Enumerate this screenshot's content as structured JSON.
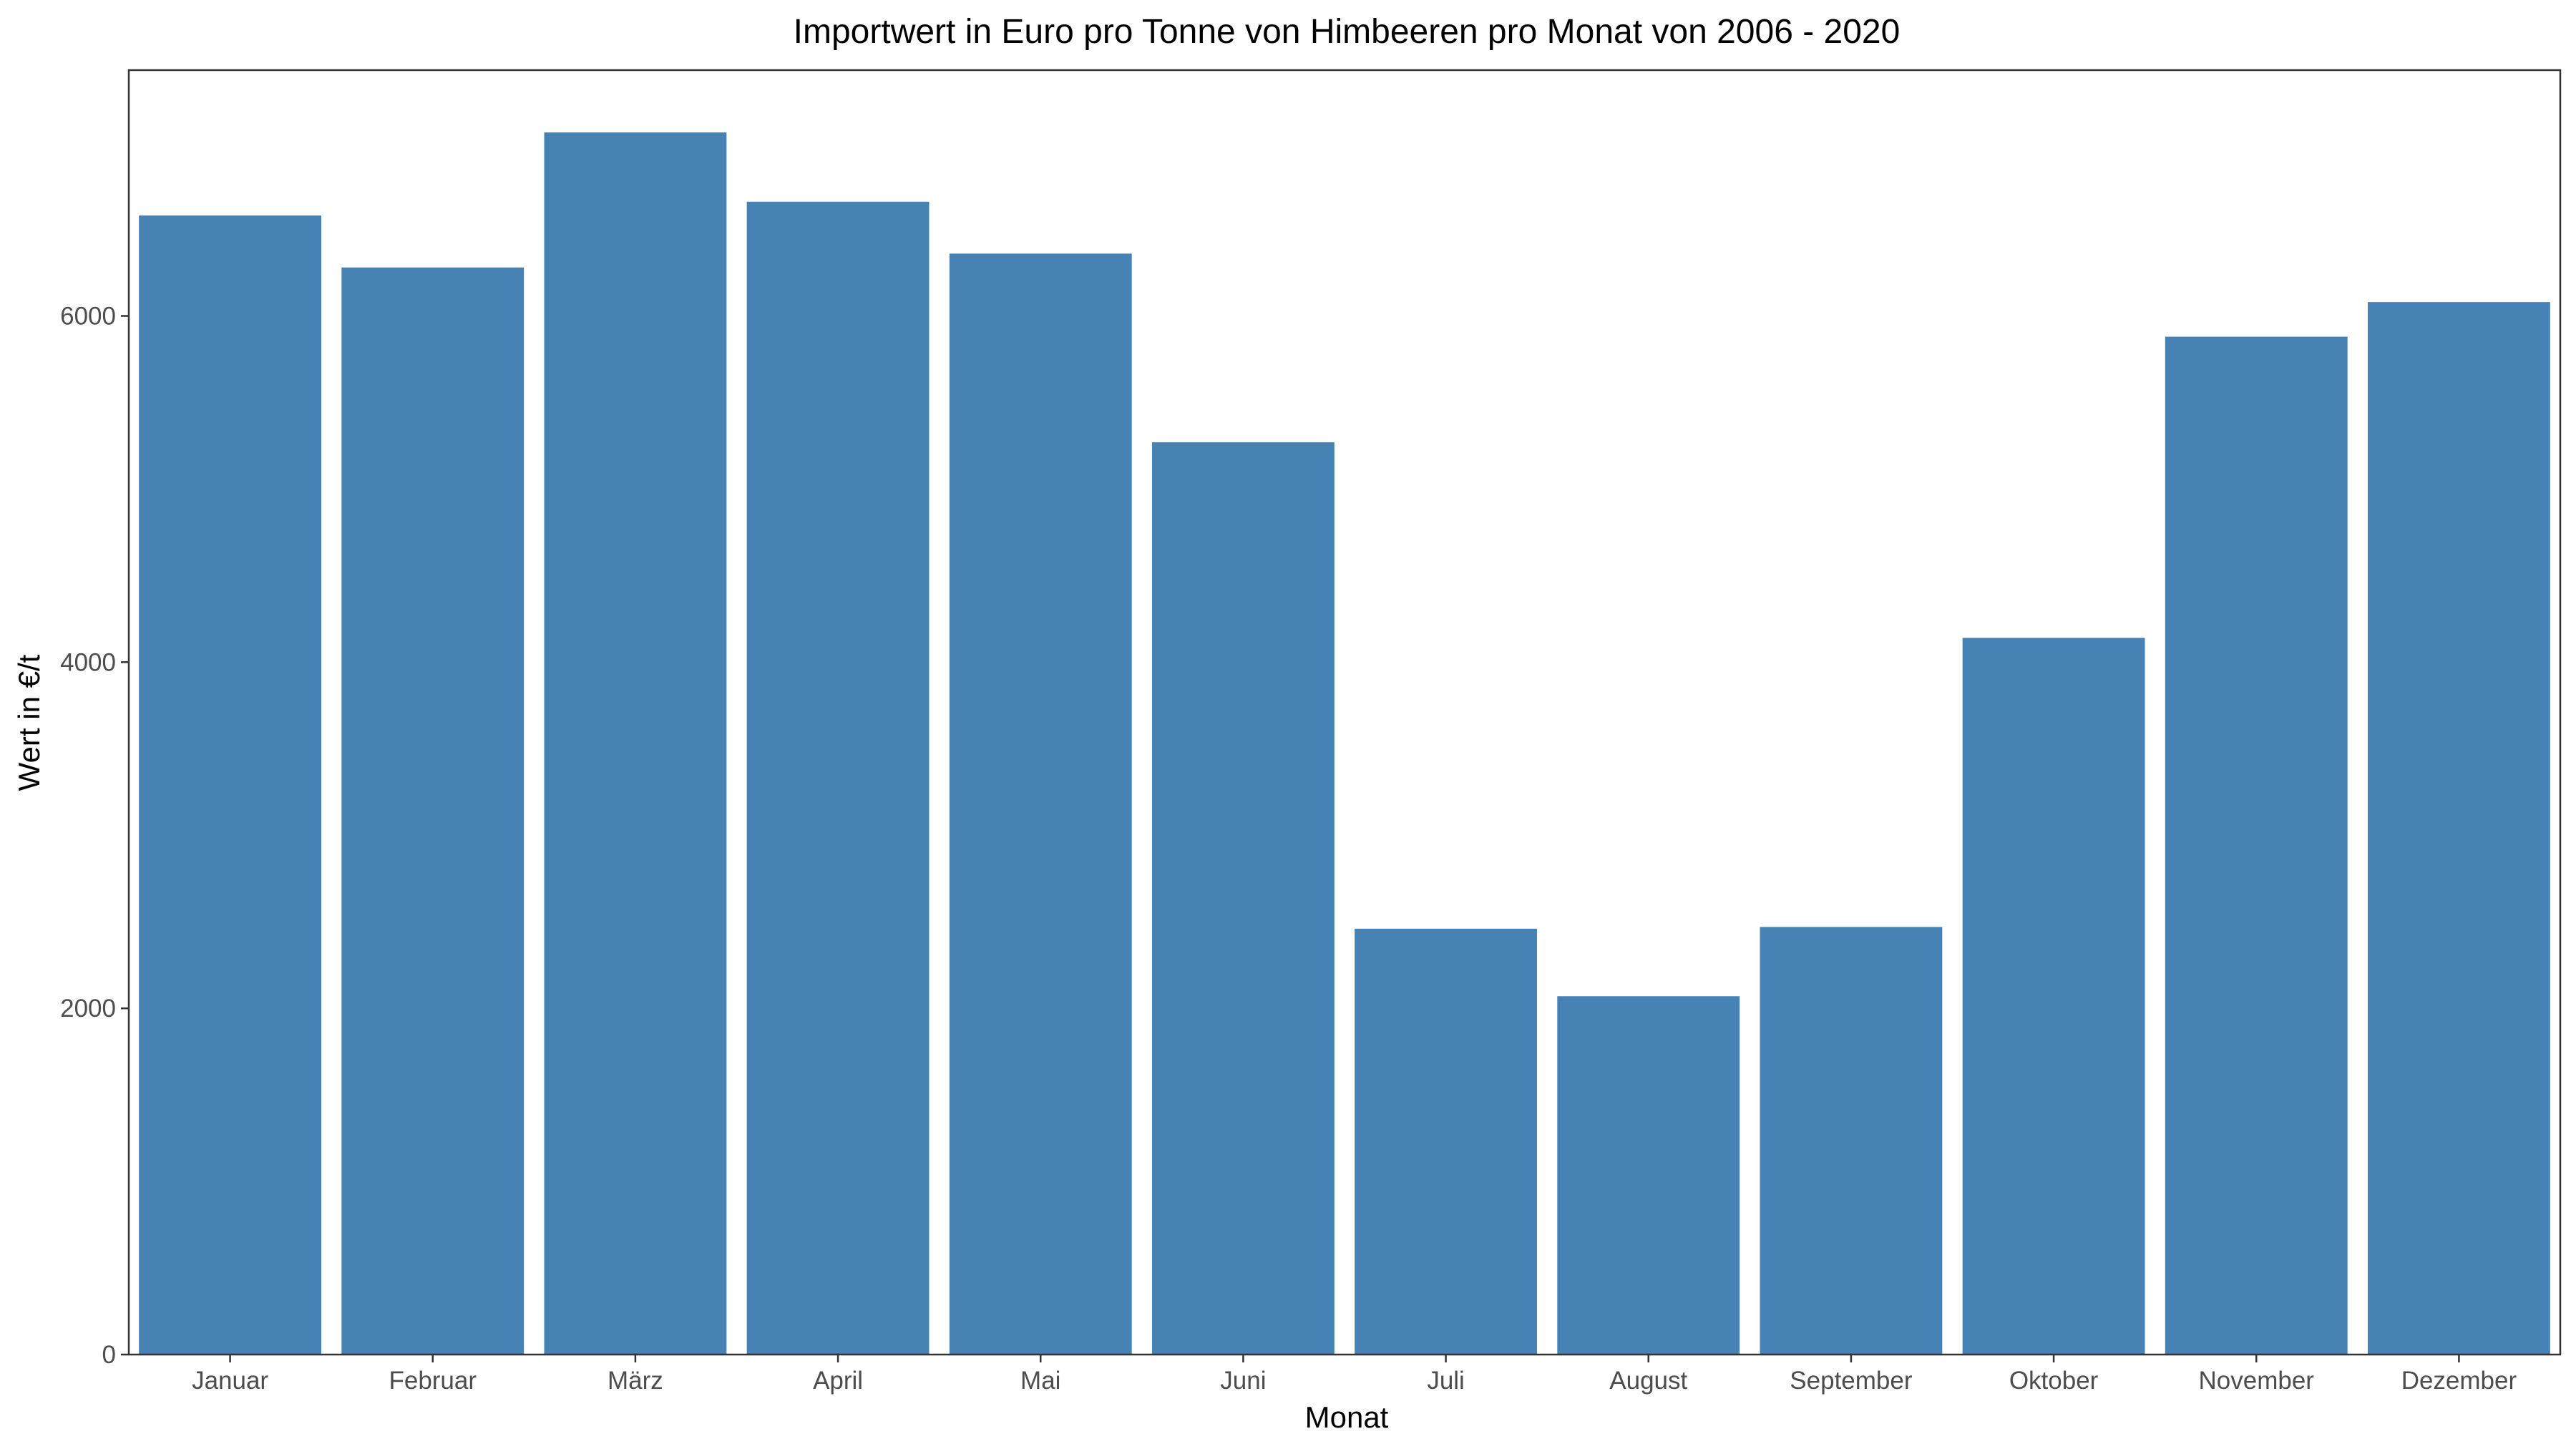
{
  "colors": {
    "bar": "#4682B4",
    "panel_border": "#333333",
    "axis_text": "#4d4d4d",
    "background": "#ffffff"
  },
  "chart_data": {
    "type": "bar",
    "title": "Importwert in Euro pro Tonne von Himbeeren pro Monat von 2006 - 2020",
    "xlabel": "Monat",
    "ylabel": "Wert in €/t",
    "categories": [
      "Januar",
      "Februar",
      "März",
      "April",
      "Mai",
      "Juni",
      "Juli",
      "August",
      "September",
      "Oktober",
      "November",
      "Dezember"
    ],
    "values": [
      6580,
      6280,
      7060,
      6660,
      6360,
      5270,
      2460,
      2070,
      2470,
      4140,
      5880,
      6080
    ],
    "ylim": [
      0,
      7420
    ],
    "yticks": [
      0,
      2000,
      4000,
      6000
    ],
    "ytick_labels": [
      "0",
      "2000",
      "4000",
      "6000"
    ],
    "grid": false,
    "legend": "none"
  }
}
